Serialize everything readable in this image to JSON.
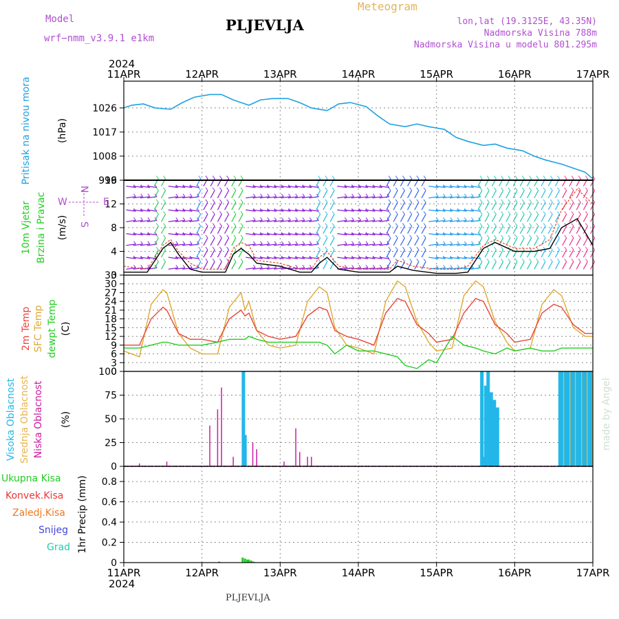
{
  "header": {
    "model_label": "Model",
    "model_name": "wrf−nmm_v3.9.1  e1km",
    "title": "PLJEVLJA",
    "meteogram": "Meteogram",
    "lonlat": "lon,lat (19.3125E, 43.35N)",
    "elevation": "Nadmorska Visina 788m",
    "model_elevation": "Nadmorska Visina u modelu 801.295m",
    "footer_title": "PLJEVLJA",
    "watermark": "made by Angel"
  },
  "time_axis": {
    "year_top": "2024",
    "year_bottom": "2024",
    "labels": [
      "11APR",
      "12APR",
      "13APR",
      "14APR",
      "15APR",
      "16APR",
      "17APR"
    ]
  },
  "colors": {
    "pressure": "#1ea0e0",
    "temp2m": "#e8463a",
    "sfc_temp": "#e0a830",
    "dewpt": "#22cc22",
    "wind_speed": "#000000",
    "wind_gust": "#ee4422",
    "high_cloud": "#22b7e8",
    "mid_cloud": "#e8b450",
    "low_cloud": "#cc1aa0",
    "total_precip": "#22cc22",
    "conv_precip": "#ee3333",
    "frozen_precip": "#ee7722",
    "snow": "#4444dd",
    "graupel": "#22ccaa"
  },
  "chart_data": [
    {
      "type": "line",
      "panel": "pressure",
      "ylabel": [
        "Pritisak na nivou mora",
        "(hPa)"
      ],
      "yticks": [
        "999",
        "1008",
        "1017",
        "1026"
      ],
      "ylim": [
        999,
        1036
      ],
      "x_days": [
        0,
        0.1,
        0.25,
        0.4,
        0.6,
        0.75,
        0.9,
        1.1,
        1.25,
        1.4,
        1.6,
        1.75,
        1.9,
        2.1,
        2.25,
        2.4,
        2.6,
        2.75,
        2.9,
        3.1,
        3.25,
        3.4,
        3.6,
        3.75,
        3.9,
        4.1,
        4.25,
        4.4,
        4.6,
        4.75,
        4.9,
        5.1,
        5.25,
        5.4,
        5.6,
        5.75,
        5.9,
        6.0
      ],
      "values": [
        1026,
        1027,
        1027.5,
        1026,
        1025.5,
        1028,
        1030,
        1031,
        1031,
        1029,
        1027,
        1029,
        1029.5,
        1029.5,
        1028,
        1026,
        1025,
        1027.5,
        1028,
        1026.5,
        1023,
        1020,
        1019,
        1020,
        1019,
        1018,
        1015,
        1013.5,
        1012,
        1012.5,
        1011,
        1010,
        1008,
        1006.5,
        1005,
        1003.5,
        1002,
        999.5
      ],
      "series": [
        {
          "name": "Pritisak na nivou mora"
        }
      ]
    },
    {
      "type": "line",
      "panel": "wind",
      "ylabel": [
        "10m Vjetar",
        "Brzina i Pravac",
        "(m/s)"
      ],
      "yticks": [
        "0",
        "4",
        "8",
        "12",
        "16"
      ],
      "ylim": [
        0,
        16
      ],
      "compass": {
        "n": "N",
        "w": "W",
        "e": "E",
        "s": "S"
      },
      "x_days": [
        0,
        0.3,
        0.4,
        0.5,
        0.6,
        0.7,
        0.85,
        1.0,
        1.2,
        1.3,
        1.4,
        1.5,
        1.6,
        1.7,
        2.0,
        2.25,
        2.4,
        2.5,
        2.6,
        2.75,
        3.0,
        3.25,
        3.4,
        3.5,
        3.7,
        4.0,
        4.25,
        4.4,
        4.6,
        4.75,
        5.0,
        5.25,
        5.45,
        5.6,
        5.8,
        6.0
      ],
      "series": [
        {
          "name": "speed",
          "values": [
            0.5,
            0.5,
            2.5,
            4.5,
            5.5,
            3.5,
            1.0,
            0.5,
            0.5,
            0.5,
            3.5,
            4.5,
            3.5,
            2.0,
            1.5,
            0.5,
            0.5,
            2.0,
            3.0,
            1.0,
            0.5,
            0.5,
            0.5,
            1.5,
            0.8,
            0.3,
            0.3,
            0.5,
            4.5,
            5.5,
            4.0,
            4.0,
            4.5,
            8.0,
            9.5,
            5.0
          ]
        },
        {
          "name": "gust",
          "values": [
            1.5,
            1.0,
            3.0,
            5.0,
            6.0,
            4.0,
            2.0,
            1.0,
            1.0,
            1.0,
            4.5,
            5.5,
            5.0,
            2.5,
            2.0,
            1.0,
            1.0,
            3.0,
            4.0,
            1.5,
            1.0,
            1.0,
            1.0,
            2.5,
            1.5,
            1.0,
            1.0,
            1.5,
            5.0,
            6.0,
            4.5,
            4.5,
            6.0,
            11.0,
            14.5,
            12.0
          ]
        }
      ]
    },
    {
      "type": "line",
      "panel": "temperature",
      "ylabel": [
        "2m Temp",
        "SFC Temp",
        "dewpt Temp",
        "(C)"
      ],
      "yticks": [
        "0",
        "3",
        "6",
        "9",
        "12",
        "15",
        "18",
        "21",
        "24",
        "27",
        "30",
        "33"
      ],
      "ylim": [
        0,
        33
      ],
      "x_days": [
        0,
        0.2,
        0.35,
        0.5,
        0.55,
        0.7,
        0.85,
        1.0,
        1.2,
        1.35,
        1.5,
        1.55,
        1.6,
        1.7,
        1.85,
        2.0,
        2.2,
        2.35,
        2.5,
        2.6,
        2.7,
        2.85,
        3.0,
        3.2,
        3.35,
        3.5,
        3.6,
        3.75,
        3.9,
        4.0,
        4.2,
        4.35,
        4.5,
        4.6,
        4.75,
        4.9,
        5.0,
        5.2,
        5.35,
        5.5,
        5.6,
        5.75,
        5.9,
        6.0
      ],
      "series": [
        {
          "name": "2m Temp",
          "values": [
            9,
            9,
            18,
            22,
            21,
            13,
            11,
            11,
            10,
            18,
            21,
            19,
            20,
            14,
            12,
            11,
            12,
            19,
            22,
            21,
            14,
            12,
            11,
            9,
            20,
            25,
            24,
            16,
            13,
            10,
            11,
            20,
            25,
            24,
            16,
            13,
            10,
            11,
            20,
            23,
            22,
            16,
            13,
            13
          ]
        },
        {
          "name": "SFC Temp",
          "values": [
            7,
            5,
            23,
            28,
            27,
            13,
            8,
            6,
            6,
            22,
            27,
            21,
            24,
            14,
            9,
            8,
            9,
            24,
            29,
            27,
            15,
            9,
            8,
            6,
            24,
            31,
            29,
            17,
            10,
            7,
            8,
            26,
            31,
            29,
            17,
            10,
            7,
            8,
            23,
            28,
            26,
            15,
            12,
            12
          ]
        },
        {
          "name": "dewpt Temp",
          "values": [
            8,
            8,
            9,
            10,
            10,
            9,
            9,
            9,
            10,
            11,
            11,
            11,
            12,
            11,
            10,
            10,
            10,
            10,
            10,
            9,
            6,
            9,
            7,
            7,
            6,
            5,
            2,
            1,
            4,
            3,
            12,
            9,
            8,
            7,
            6,
            8,
            7,
            8,
            7,
            7,
            8,
            8,
            8,
            8
          ]
        }
      ]
    },
    {
      "type": "bar",
      "panel": "cloud",
      "ylabel": [
        "Visoka Oblacnost",
        "Srednja Oblacnost",
        "Niska Oblacnost",
        "(%)"
      ],
      "yticks": [
        "0",
        "25",
        "50",
        "75",
        "100"
      ],
      "ylim": [
        0,
        100
      ],
      "series": [
        {
          "name": "Niska Oblacnost",
          "x_days": [
            0.2,
            0.55,
            1.1,
            1.2,
            1.25,
            1.4,
            1.52,
            1.65,
            1.7,
            2.05,
            2.2,
            2.25,
            2.35,
            2.4
          ],
          "values": [
            3,
            5,
            43,
            60,
            83,
            10,
            100,
            25,
            18,
            5,
            40,
            15,
            10,
            10
          ]
        },
        {
          "name": "Visoka Oblacnost",
          "x_days": [
            1.53,
            1.55,
            4.58,
            4.6,
            4.63,
            4.66,
            4.7,
            4.74,
            4.78,
            5.58,
            5.61,
            5.64,
            5.67,
            5.7,
            5.73,
            5.76,
            5.79,
            5.82,
            5.85,
            5.88,
            5.91,
            5.94,
            5.97
          ],
          "values": [
            100,
            33,
            100,
            10,
            85,
            100,
            78,
            70,
            62,
            100,
            100,
            100,
            100,
            100,
            100,
            100,
            100,
            100,
            100,
            100,
            100,
            100,
            100
          ]
        }
      ]
    },
    {
      "type": "bar",
      "panel": "precip",
      "ylabel": [
        "1hr Precip (mm)"
      ],
      "legend": [
        "Ukupna Kisa",
        "Konvek.Kisa",
        "Zaledj.Kisa",
        "Snijeg",
        "Grad"
      ],
      "yticks": [
        "0",
        "0.2",
        "0.4",
        "0.6",
        "0.8"
      ],
      "ylim": [
        0,
        0.95
      ],
      "x_days": [
        1.22,
        1.52,
        1.55,
        1.58,
        1.6,
        1.63,
        1.66
      ],
      "values": [
        0.01,
        0.05,
        0.04,
        0.03,
        0.03,
        0.02,
        0.01
      ]
    }
  ]
}
